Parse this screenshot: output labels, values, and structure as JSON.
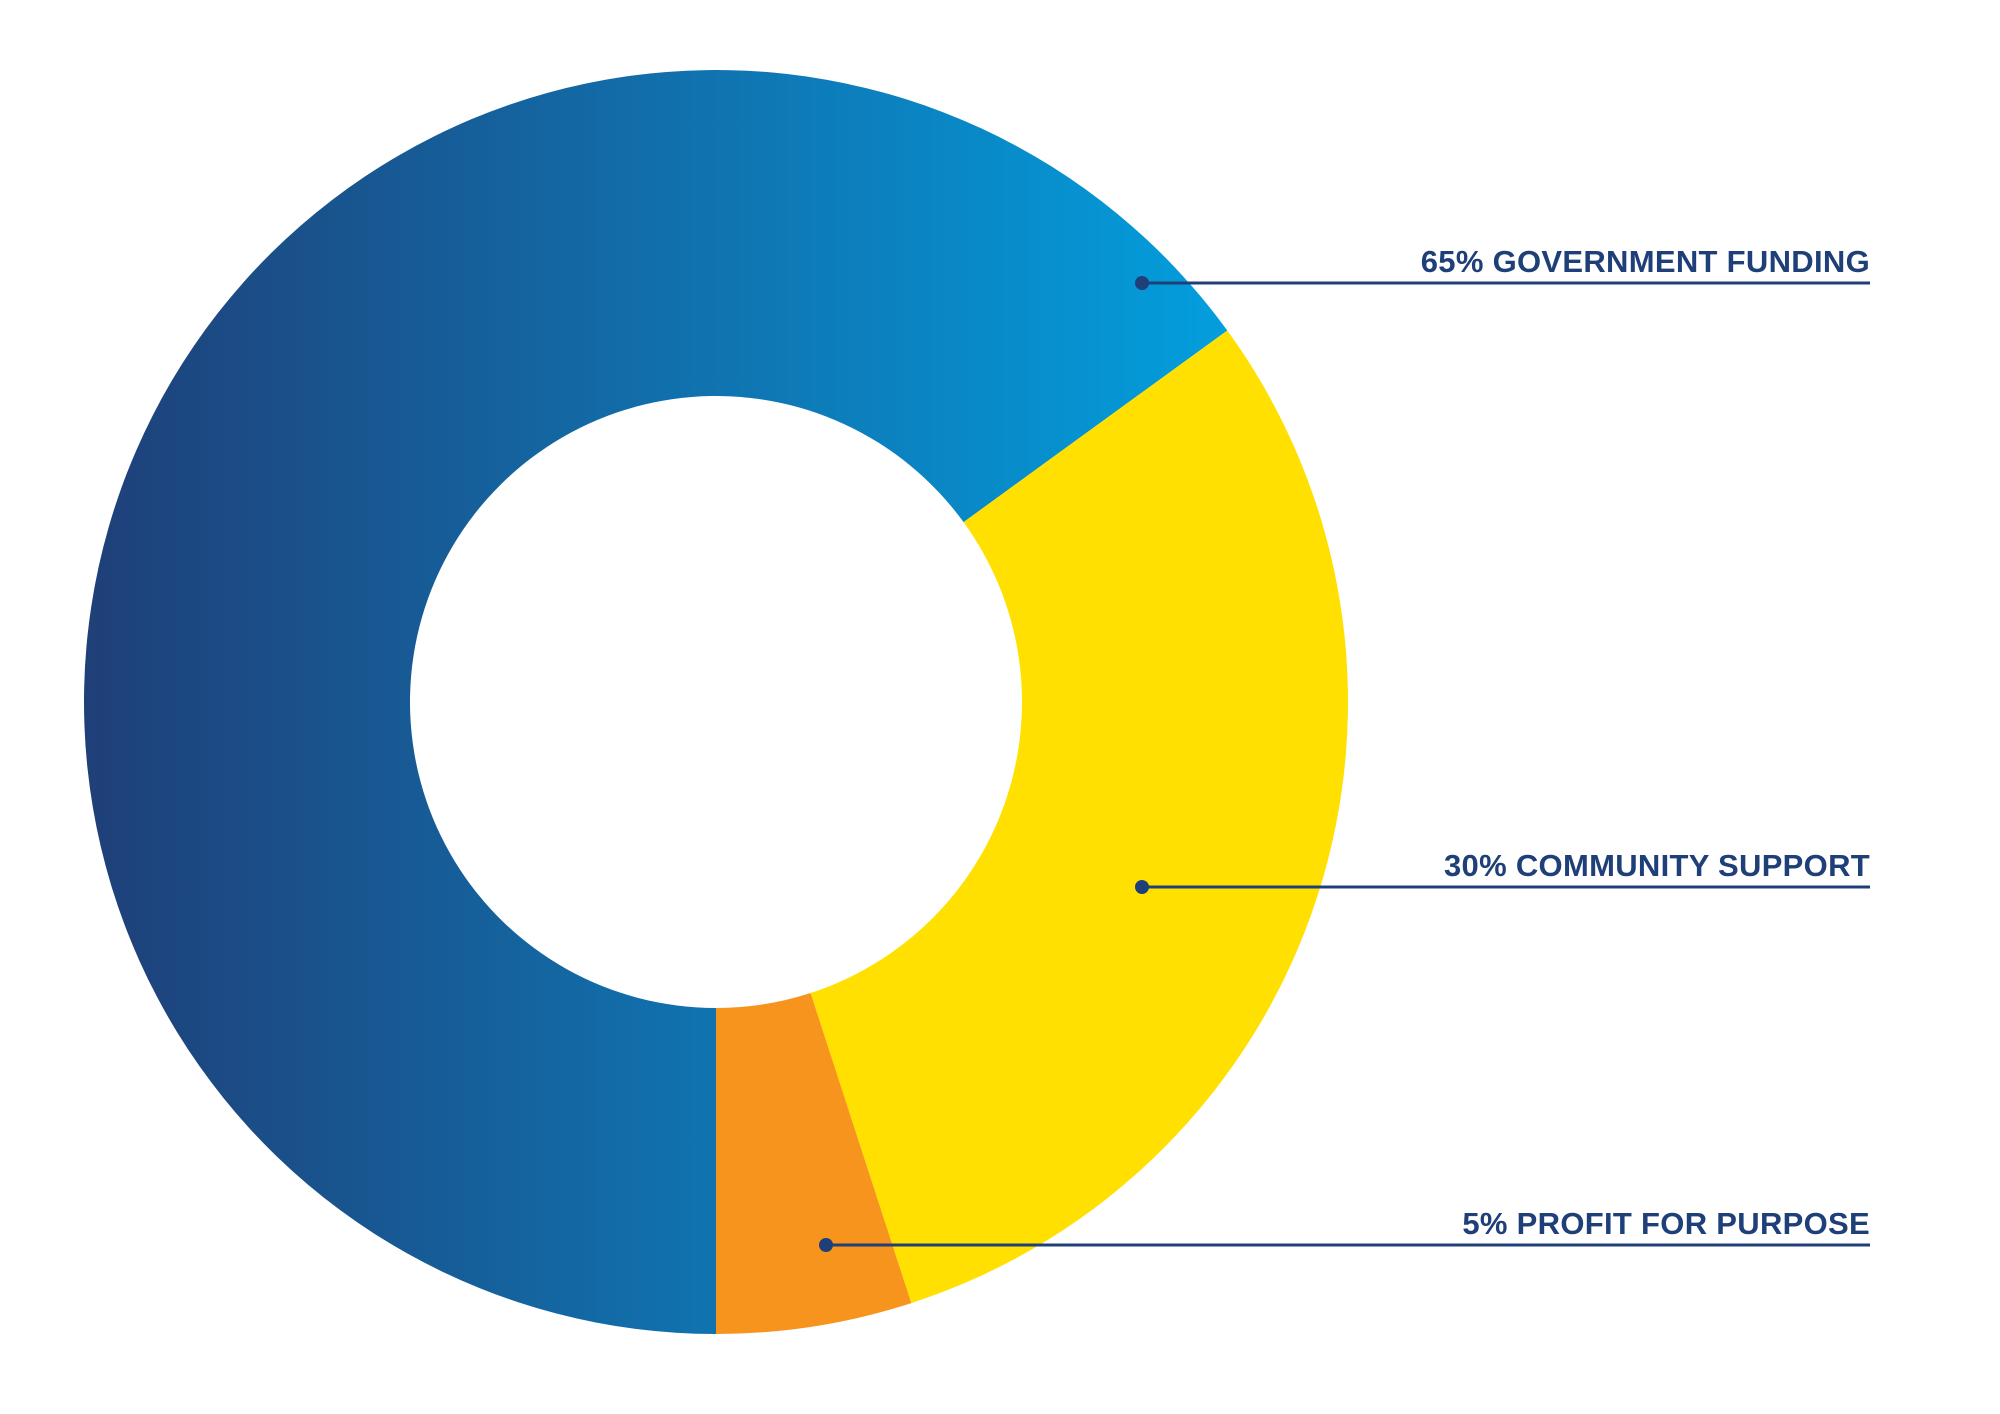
{
  "chart_data": {
    "type": "pie",
    "donut": true,
    "slices": [
      {
        "label": "65% GOVERNMENT FUNDING",
        "value": 65,
        "color_start": "#1f3f78",
        "color_end": "#00a8e8"
      },
      {
        "label": "30% COMMUNITY SUPPORT",
        "value": 30,
        "color": "#ffe000"
      },
      {
        "label": "5% PROFIT FOR PURPOSE",
        "value": 5,
        "color": "#f7941d"
      }
    ],
    "label_color": "#1f3f78",
    "legend_position": "right"
  }
}
